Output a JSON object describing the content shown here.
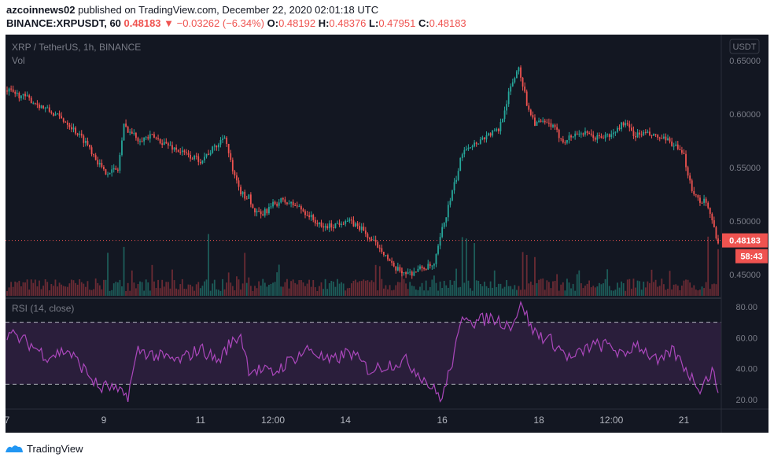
{
  "header": {
    "author": "azcoinnews02",
    "published_text": "published on TradingView.com, December 22, 2020 02:01:18 UTC",
    "symbol": "BINANCE:XRPUSDT, 60",
    "last": "0.48183",
    "change_arrow": "▼",
    "change": "−0.03262 (−6.34%)",
    "o_label": "O:",
    "o_value": "0.48192",
    "h_label": "H:",
    "h_value": "0.48376",
    "l_label": "L:",
    "l_value": "0.47951",
    "c_label": "C:",
    "c_value": "0.48183"
  },
  "chart_data": [
    {
      "type": "candlestick",
      "title": "XRP / TetherUS, 1h, BINANCE",
      "volume_label": "Vol",
      "currency_badge": "USDT",
      "ylim": [
        0.43,
        0.67
      ],
      "y_ticks": [
        "0.65000",
        "0.60000",
        "0.55000",
        "0.50000",
        "0.45000"
      ],
      "y_tick_values": [
        0.65,
        0.6,
        0.55,
        0.5,
        0.45
      ],
      "last_price_label": "0.48183",
      "last_price": 0.48183,
      "countdown_label": "58:43",
      "x_ticks": [
        "7",
        "9",
        "11",
        "12:00",
        "14",
        "16",
        "18",
        "12:00",
        "21"
      ],
      "x_tick_positions_hours": [
        0,
        48,
        96,
        132,
        168,
        216,
        264,
        300,
        336
      ],
      "x_start": "Dec 7, 00:00",
      "price_path_hours": [
        0,
        10,
        20,
        30,
        40,
        48,
        55,
        58,
        65,
        70,
        72,
        80,
        90,
        96,
        105,
        108,
        112,
        115,
        118,
        120,
        122,
        126,
        132,
        136,
        144,
        150,
        156,
        162,
        168,
        176,
        180,
        186,
        192,
        200,
        206,
        212,
        216,
        220,
        224,
        226,
        228,
        232,
        238,
        244,
        250,
        254,
        258,
        262,
        264,
        270,
        276,
        284,
        292,
        300,
        306,
        312,
        316,
        320,
        326,
        330,
        336,
        340,
        344,
        346,
        348,
        350,
        352,
        353
      ],
      "price_path_values": [
        0.622,
        0.615,
        0.604,
        0.592,
        0.572,
        0.546,
        0.548,
        0.589,
        0.577,
        0.578,
        0.579,
        0.571,
        0.561,
        0.557,
        0.572,
        0.581,
        0.546,
        0.53,
        0.522,
        0.525,
        0.51,
        0.505,
        0.515,
        0.519,
        0.514,
        0.505,
        0.494,
        0.496,
        0.501,
        0.493,
        0.483,
        0.474,
        0.455,
        0.451,
        0.456,
        0.458,
        0.492,
        0.52,
        0.547,
        0.565,
        0.57,
        0.572,
        0.58,
        0.585,
        0.625,
        0.645,
        0.61,
        0.592,
        0.592,
        0.59,
        0.575,
        0.583,
        0.578,
        0.58,
        0.592,
        0.58,
        0.582,
        0.58,
        0.576,
        0.573,
        0.56,
        0.53,
        0.518,
        0.521,
        0.51,
        0.5,
        0.486,
        0.482
      ],
      "volume_spike_hours": [
        50,
        58,
        100,
        118,
        226,
        228,
        232,
        256,
        258,
        262,
        348,
        353
      ]
    },
    {
      "type": "line",
      "title": "RSI (14, close)",
      "ylim": [
        15,
        85
      ],
      "y_ticks": [
        "80.00",
        "60.00",
        "40.00",
        "20.00"
      ],
      "y_tick_values": [
        80,
        60,
        40,
        20
      ],
      "upper_band": 70,
      "lower_band": 30,
      "rsi_path_hours": [
        0,
        10,
        20,
        30,
        40,
        46,
        50,
        56,
        60,
        65,
        75,
        85,
        96,
        105,
        110,
        116,
        120,
        126,
        132,
        140,
        150,
        160,
        170,
        180,
        190,
        198,
        206,
        212,
        216,
        220,
        224,
        226,
        228,
        232,
        240,
        250,
        256,
        260,
        264,
        270,
        280,
        290,
        300,
        306,
        312,
        318,
        324,
        330,
        336,
        340,
        344,
        348,
        350,
        353
      ],
      "rsi_path_values": [
        63,
        57,
        48,
        52,
        37,
        27,
        29,
        24,
        23,
        52,
        48,
        45,
        53,
        45,
        55,
        62,
        40,
        39,
        37,
        45,
        53,
        44,
        51,
        39,
        43,
        45,
        35,
        26,
        21,
        40,
        60,
        72,
        76,
        70,
        73,
        68,
        82,
        66,
        62,
        58,
        46,
        55,
        55,
        47,
        57,
        50,
        43,
        52,
        42,
        34,
        28,
        35,
        38,
        27
      ]
    }
  ],
  "footer": {
    "brand": "TradingView"
  },
  "colors": {
    "background": "#131722",
    "up": "#26a69a",
    "down": "#ef5350",
    "rsi_line": "#ab47bc",
    "rsi_band_fill": "#2a1e3b",
    "text": "#787b86"
  }
}
